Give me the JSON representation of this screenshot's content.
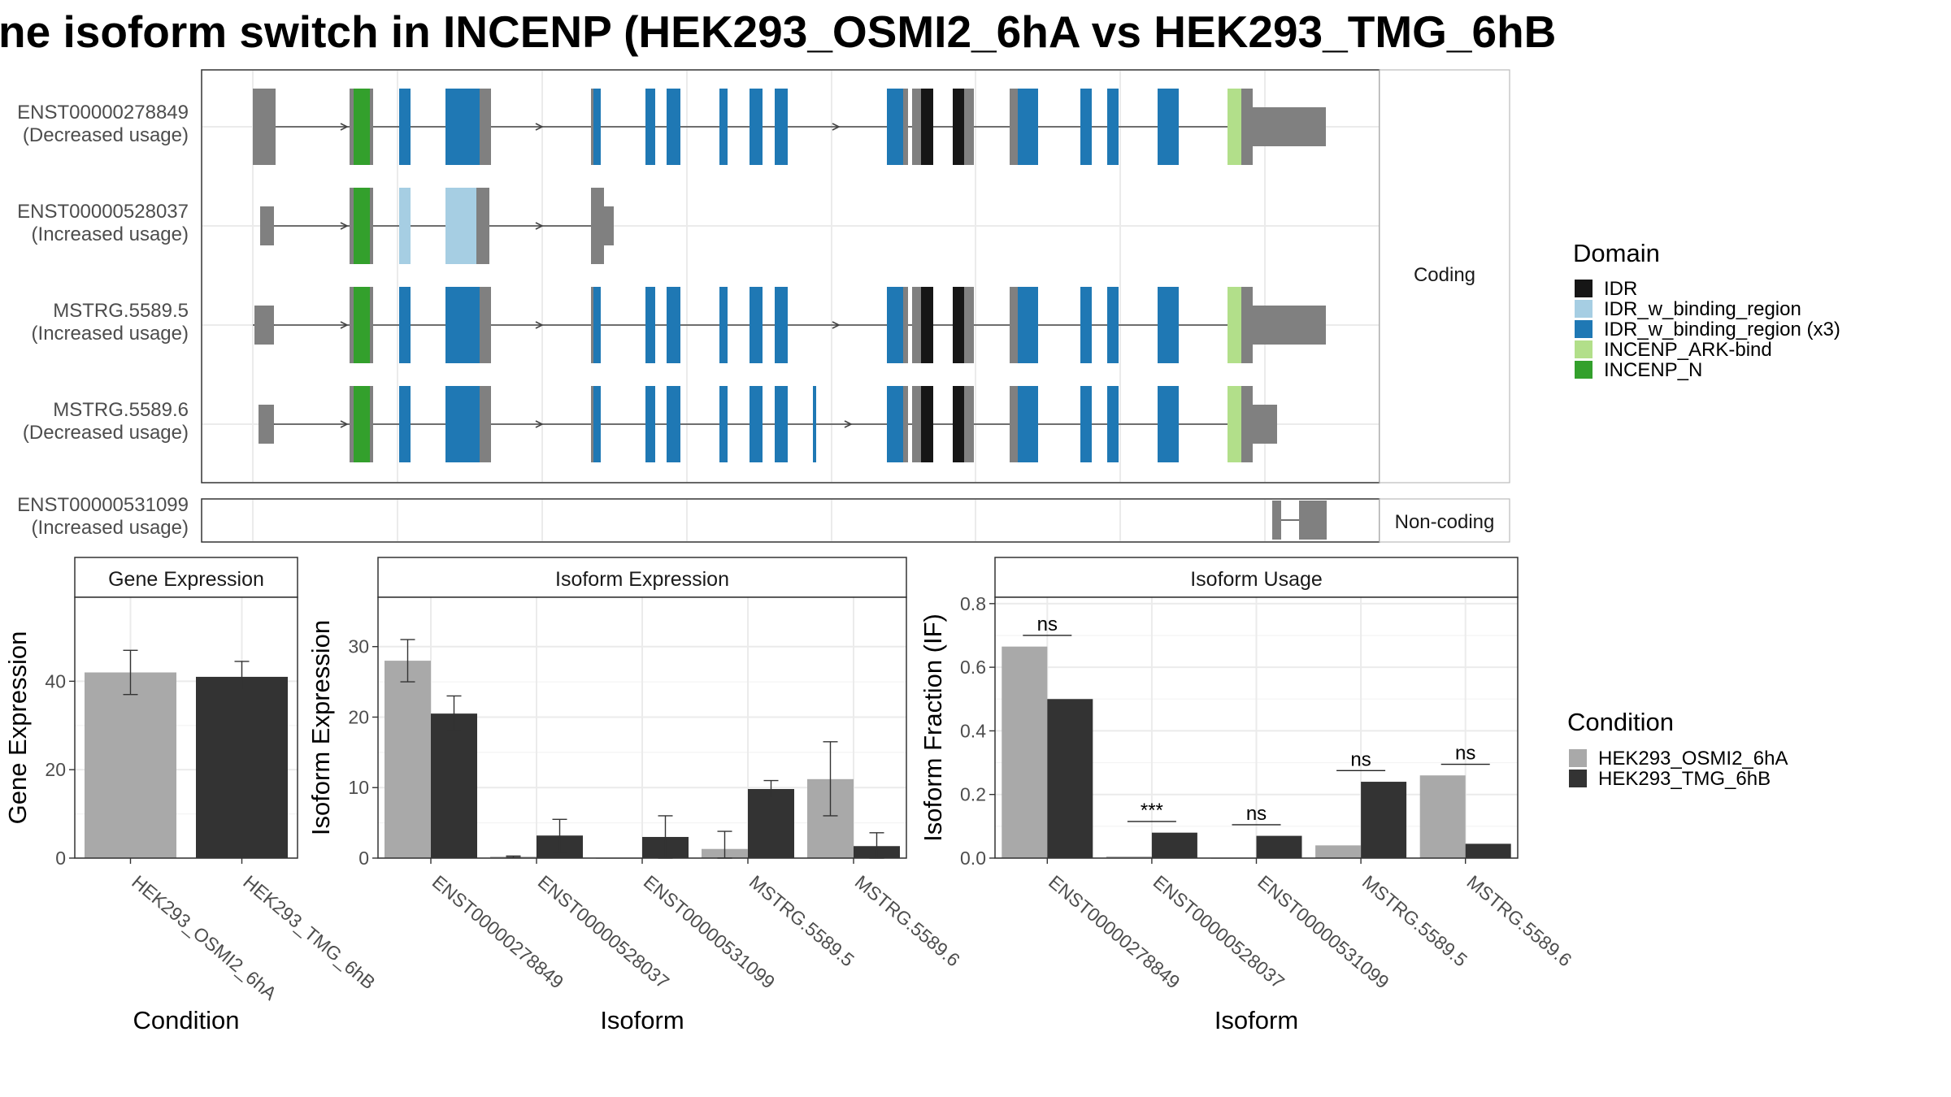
{
  "title": "ne isoform switch in INCENP (HEK293_OSMI2_6hA vs HEK293_TMG_6hB",
  "colors": {
    "intron": "#888888",
    "utr": "#808080",
    "IDR": "#161616",
    "IDR_w_binding_region": "#a6cee3",
    "IDR_w_binding_region_x3": "#1f78b4",
    "INCENP_ARK_bind": "#b2df8a",
    "INCENP_N": "#33a02c",
    "cond_a": "#a9a9a9",
    "cond_b": "#333333",
    "panel_border": "#333333",
    "strip_fill": "#ffffff",
    "grid": "#ebebeb"
  },
  "structure": {
    "facet_coding": "Coding",
    "facet_noncoding": "Non-coding",
    "transcripts": [
      {
        "id": "ENST00000278849",
        "usage": "(Decreased usage)",
        "coding": true
      },
      {
        "id": "ENST00000528037",
        "usage": "(Increased usage)",
        "coding": true
      },
      {
        "id": "MSTRG.5589.5",
        "usage": "(Increased usage)",
        "coding": true
      },
      {
        "id": "MSTRG.5589.6",
        "usage": "(Decreased usage)",
        "coding": true
      },
      {
        "id": "ENST00000531099",
        "usage": "(Increased usage)",
        "coding": false
      }
    ]
  },
  "legend_domain": {
    "title": "Domain",
    "items": [
      {
        "key": "IDR",
        "label": "IDR"
      },
      {
        "key": "IDR_w_binding_region",
        "label": "IDR_w_binding_region"
      },
      {
        "key": "IDR_w_binding_region_x3",
        "label": "IDR_w_binding_region (x3)"
      },
      {
        "key": "INCENP_ARK_bind",
        "label": "INCENP_ARK-bind"
      },
      {
        "key": "INCENP_N",
        "label": "INCENP_N"
      }
    ]
  },
  "legend_condition": {
    "title": "Condition",
    "items": [
      {
        "key": "cond_a",
        "label": "HEK293_OSMI2_6hA"
      },
      {
        "key": "cond_b",
        "label": "HEK293_TMG_6hB"
      }
    ]
  },
  "chart_data": [
    {
      "type": "bar",
      "title": "Gene Expression",
      "xlabel": "Condition",
      "ylabel": "Gene Expression",
      "ylim": [
        0,
        59
      ],
      "yticks": [
        0,
        20,
        40
      ],
      "categories": [
        "HEK293_OSMI2_6hA",
        "HEK293_TMG_6hB"
      ],
      "values": [
        42,
        41
      ],
      "errors": [
        [
          37,
          47
        ],
        [
          38,
          44.5
        ]
      ],
      "bar_colors": [
        "cond_a",
        "cond_b"
      ]
    },
    {
      "type": "bar",
      "title": "Isoform Expression",
      "xlabel": "Isoform",
      "ylabel": "Isoform Expression",
      "ylim": [
        0,
        37
      ],
      "yticks": [
        0,
        10,
        20,
        30
      ],
      "categories": [
        "ENST00000278849",
        "ENST00000528037",
        "ENST00000531099",
        "MSTRG.5589.5",
        "MSTRG.5589.6"
      ],
      "series": [
        {
          "name": "HEK293_OSMI2_6hA",
          "color": "cond_a",
          "values": [
            28,
            0.2,
            0,
            1.3,
            11.2
          ],
          "errors": [
            [
              25,
              31
            ],
            [
              0.1,
              0.3
            ],
            [
              0,
              0
            ],
            [
              0,
              3.8
            ],
            [
              6,
              16.5
            ]
          ]
        },
        {
          "name": "HEK293_TMG_6hB",
          "color": "cond_b",
          "values": [
            20.5,
            3.2,
            3.0,
            9.8,
            1.7
          ],
          "errors": [
            [
              18,
              23
            ],
            [
              0.8,
              5.5
            ],
            [
              0,
              6
            ],
            [
              8.5,
              11
            ],
            [
              0,
              3.6
            ]
          ]
        }
      ]
    },
    {
      "type": "bar",
      "title": "Isoform Usage",
      "xlabel": "Isoform",
      "ylabel": "Isoform Fraction (IF)",
      "ylim": [
        0,
        0.82
      ],
      "yticks": [
        0,
        0.2,
        0.4,
        0.6,
        0.8
      ],
      "ytick_labels": [
        "0.0",
        "0.2",
        "0.4",
        "0.6",
        "0.8"
      ],
      "categories": [
        "ENST00000278849",
        "ENST00000528037",
        "ENST00000531099",
        "MSTRG.5589.5",
        "MSTRG.5589.6"
      ],
      "series": [
        {
          "name": "HEK293_OSMI2_6hA",
          "color": "cond_a",
          "values": [
            0.665,
            0.005,
            0,
            0.04,
            0.26
          ]
        },
        {
          "name": "HEK293_TMG_6hB",
          "color": "cond_b",
          "values": [
            0.5,
            0.08,
            0.07,
            0.24,
            0.045
          ]
        }
      ],
      "significance": [
        "ns",
        "***",
        "ns",
        "ns",
        "ns"
      ],
      "significance_y": [
        0.7,
        0.115,
        0.105,
        0.275,
        0.295
      ]
    }
  ]
}
